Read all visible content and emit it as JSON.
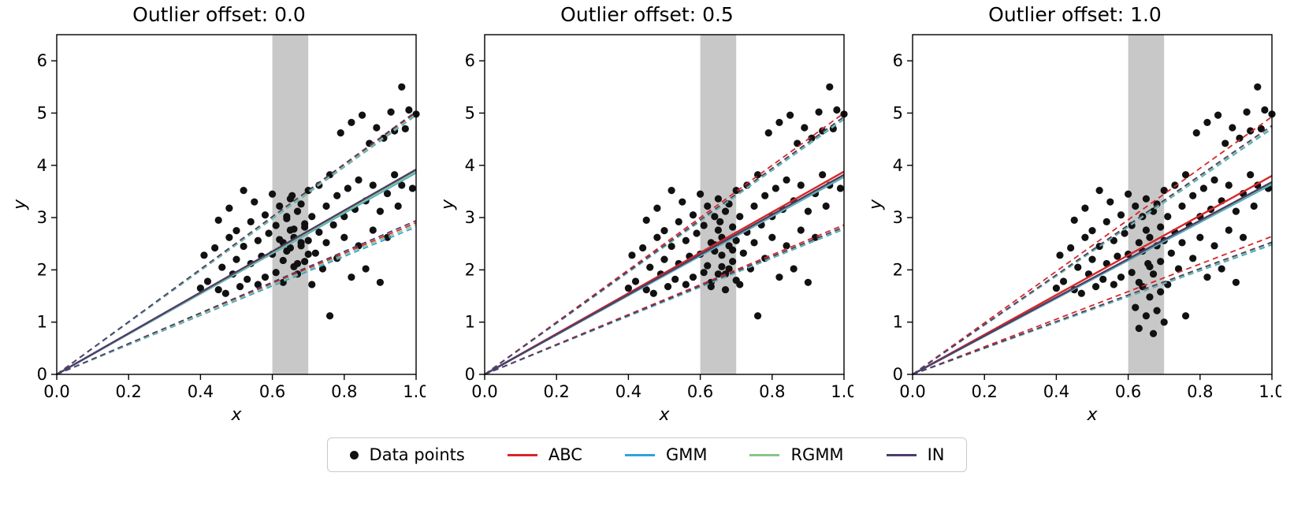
{
  "figure": {
    "legend": {
      "items": [
        {
          "label": "Data points",
          "type": "marker",
          "color": "#111111"
        },
        {
          "label": "ABC",
          "type": "line",
          "color": "#d62728"
        },
        {
          "label": "GMM",
          "type": "line",
          "color": "#31a2dc"
        },
        {
          "label": "RGMM",
          "type": "line",
          "color": "#88c488"
        },
        {
          "label": "IN",
          "type": "line",
          "color": "#4e3d6b"
        }
      ]
    }
  },
  "chart_data": {
    "type": "scatter",
    "description": "Three scatter panels with linear fits through origin (solid = mean, dashed = bounds) from four methods; gray band marks outlier region x in [0.6, 0.7].",
    "base_points": [
      [
        0.4,
        1.65
      ],
      [
        0.41,
        2.28
      ],
      [
        0.42,
        1.78
      ],
      [
        0.44,
        2.42
      ],
      [
        0.45,
        1.62
      ],
      [
        0.45,
        2.95
      ],
      [
        0.46,
        2.05
      ],
      [
        0.47,
        1.55
      ],
      [
        0.48,
        2.62
      ],
      [
        0.48,
        3.18
      ],
      [
        0.49,
        1.92
      ],
      [
        0.5,
        2.75
      ],
      [
        0.5,
        2.2
      ],
      [
        0.51,
        1.68
      ],
      [
        0.52,
        3.52
      ],
      [
        0.52,
        2.45
      ],
      [
        0.53,
        1.82
      ],
      [
        0.54,
        2.92
      ],
      [
        0.54,
        2.12
      ],
      [
        0.55,
        3.3
      ],
      [
        0.56,
        1.72
      ],
      [
        0.56,
        2.56
      ],
      [
        0.57,
        2.26
      ],
      [
        0.58,
        3.05
      ],
      [
        0.58,
        1.86
      ],
      [
        0.59,
        2.7
      ],
      [
        0.6,
        3.45
      ],
      [
        0.6,
        2.3
      ],
      [
        0.61,
        1.95
      ],
      [
        0.61,
        2.85
      ],
      [
        0.62,
        3.22
      ],
      [
        0.63,
        2.52
      ],
      [
        0.63,
        1.76
      ],
      [
        0.64,
        3.02
      ],
      [
        0.64,
        2.36
      ],
      [
        0.65,
        2.76
      ],
      [
        0.65,
        3.36
      ],
      [
        0.66,
        2.06
      ],
      [
        0.66,
        2.62
      ],
      [
        0.67,
        3.12
      ],
      [
        0.67,
        1.92
      ],
      [
        0.68,
        2.46
      ],
      [
        0.68,
        3.26
      ],
      [
        0.69,
        2.82
      ],
      [
        0.69,
        2.16
      ],
      [
        0.7,
        3.52
      ],
      [
        0.7,
        2.56
      ],
      [
        0.71,
        1.72
      ],
      [
        0.71,
        3.02
      ],
      [
        0.72,
        2.32
      ],
      [
        0.73,
        3.62
      ],
      [
        0.73,
        2.72
      ],
      [
        0.74,
        2.02
      ],
      [
        0.75,
        3.22
      ],
      [
        0.75,
        2.52
      ],
      [
        0.76,
        3.82
      ],
      [
        0.76,
        1.12
      ],
      [
        0.77,
        2.86
      ],
      [
        0.78,
        3.42
      ],
      [
        0.78,
        2.22
      ],
      [
        0.79,
        4.62
      ],
      [
        0.8,
        3.02
      ],
      [
        0.8,
        2.62
      ],
      [
        0.81,
        3.56
      ],
      [
        0.82,
        1.86
      ],
      [
        0.82,
        4.82
      ],
      [
        0.83,
        3.16
      ],
      [
        0.84,
        2.46
      ],
      [
        0.84,
        3.72
      ],
      [
        0.85,
        4.96
      ],
      [
        0.86,
        3.32
      ],
      [
        0.86,
        2.02
      ],
      [
        0.87,
        4.42
      ],
      [
        0.88,
        3.62
      ],
      [
        0.88,
        2.76
      ],
      [
        0.89,
        4.72
      ],
      [
        0.9,
        3.12
      ],
      [
        0.9,
        1.76
      ],
      [
        0.91,
        4.52
      ],
      [
        0.92,
        3.46
      ],
      [
        0.92,
        2.62
      ],
      [
        0.93,
        5.02
      ],
      [
        0.94,
        3.82
      ],
      [
        0.94,
        4.66
      ],
      [
        0.95,
        3.22
      ],
      [
        0.96,
        5.5
      ],
      [
        0.96,
        3.62
      ],
      [
        0.97,
        4.7
      ],
      [
        0.98,
        5.06
      ],
      [
        0.99,
        3.56
      ],
      [
        1.0,
        4.98
      ]
    ],
    "panels": [
      {
        "title": "Outlier offset: 0.0",
        "outlier_offset": 0.0,
        "xlabel": "x",
        "ylabel": "y",
        "xlim": [
          0,
          1.0
        ],
        "ylim": [
          0,
          6.5
        ],
        "xtick_values": [
          0,
          0.2,
          0.4,
          0.6,
          0.8,
          1.0
        ],
        "xtick_labels": [
          "0.0",
          "0.2",
          "0.4",
          "0.6",
          "0.8",
          "1.0"
        ],
        "ytick_values": [
          0,
          1,
          2,
          3,
          4,
          5,
          6
        ],
        "ytick_labels": [
          "0",
          "1",
          "2",
          "3",
          "4",
          "5",
          "6"
        ],
        "band": {
          "x0": 0.6,
          "x1": 0.7,
          "color": "#c8c8c8"
        },
        "outlier_points": [
          [
            0.62,
            2.58
          ],
          [
            0.63,
            2.18
          ],
          [
            0.64,
            2.98
          ],
          [
            0.65,
            2.42
          ],
          [
            0.655,
            3.42
          ],
          [
            0.66,
            2.78
          ],
          [
            0.67,
            2.12
          ],
          [
            0.68,
            2.52
          ],
          [
            0.69,
            2.88
          ],
          [
            0.7,
            2.3
          ]
        ],
        "lines": [
          {
            "name": "ABC",
            "color": "#d62728",
            "mean_slope": 3.9,
            "upper_slope": 5.0,
            "lower_slope": 2.9
          },
          {
            "name": "GMM",
            "color": "#31a2dc",
            "mean_slope": 3.86,
            "upper_slope": 4.96,
            "lower_slope": 2.82
          },
          {
            "name": "RGMM",
            "color": "#88c488",
            "mean_slope": 3.88,
            "upper_slope": 4.98,
            "lower_slope": 2.86
          },
          {
            "name": "IN",
            "color": "#4e3d6b",
            "mean_slope": 3.92,
            "upper_slope": 5.03,
            "lower_slope": 2.94
          }
        ]
      },
      {
        "title": "Outlier offset: 0.5",
        "outlier_offset": 0.5,
        "xlabel": "x",
        "ylabel": "y",
        "xlim": [
          0,
          1.0
        ],
        "ylim": [
          0,
          6.5
        ],
        "xtick_values": [
          0,
          0.2,
          0.4,
          0.6,
          0.8,
          1.0
        ],
        "xtick_labels": [
          "0.0",
          "0.2",
          "0.4",
          "0.6",
          "0.8",
          "1.0"
        ],
        "ytick_values": [
          0,
          1,
          2,
          3,
          4,
          5,
          6
        ],
        "ytick_labels": [
          "0",
          "1",
          "2",
          "3",
          "4",
          "5",
          "6"
        ],
        "band": {
          "x0": 0.6,
          "x1": 0.7,
          "color": "#c8c8c8"
        },
        "outlier_points": [
          [
            0.62,
            2.08
          ],
          [
            0.63,
            1.68
          ],
          [
            0.64,
            2.48
          ],
          [
            0.65,
            1.92
          ],
          [
            0.655,
            2.92
          ],
          [
            0.66,
            2.28
          ],
          [
            0.67,
            1.62
          ],
          [
            0.68,
            2.02
          ],
          [
            0.69,
            2.38
          ],
          [
            0.7,
            1.8
          ]
        ],
        "lines": [
          {
            "name": "ABC",
            "color": "#d62728",
            "mean_slope": 3.88,
            "upper_slope": 5.0,
            "lower_slope": 2.86
          },
          {
            "name": "GMM",
            "color": "#31a2dc",
            "mean_slope": 3.78,
            "upper_slope": 4.88,
            "lower_slope": 2.78
          },
          {
            "name": "RGMM",
            "color": "#88c488",
            "mean_slope": 3.8,
            "upper_slope": 4.9,
            "lower_slope": 2.8
          },
          {
            "name": "IN",
            "color": "#4e3d6b",
            "mean_slope": 3.82,
            "upper_slope": 4.93,
            "lower_slope": 2.82
          }
        ]
      },
      {
        "title": "Outlier offset: 1.0",
        "outlier_offset": 1.0,
        "xlabel": "x",
        "ylabel": "y",
        "xlim": [
          0,
          1.0
        ],
        "ylim": [
          0,
          6.5
        ],
        "xtick_values": [
          0,
          0.2,
          0.4,
          0.6,
          0.8,
          1.0
        ],
        "xtick_labels": [
          "0.0",
          "0.2",
          "0.4",
          "0.6",
          "0.8",
          "1.0"
        ],
        "ytick_values": [
          0,
          1,
          2,
          3,
          4,
          5,
          6
        ],
        "ytick_labels": [
          "0",
          "1",
          "2",
          "3",
          "4",
          "5",
          "6"
        ],
        "band": {
          "x0": 0.6,
          "x1": 0.7,
          "color": "#c8c8c8"
        },
        "outlier_points": [
          [
            0.62,
            1.28
          ],
          [
            0.63,
            0.88
          ],
          [
            0.64,
            1.68
          ],
          [
            0.65,
            1.12
          ],
          [
            0.655,
            2.12
          ],
          [
            0.66,
            1.48
          ],
          [
            0.67,
            0.78
          ],
          [
            0.68,
            1.22
          ],
          [
            0.69,
            1.58
          ],
          [
            0.7,
            1.0
          ]
        ],
        "lines": [
          {
            "name": "ABC",
            "color": "#d62728",
            "mean_slope": 3.8,
            "upper_slope": 4.93,
            "lower_slope": 2.64
          },
          {
            "name": "GMM",
            "color": "#31a2dc",
            "mean_slope": 3.64,
            "upper_slope": 4.7,
            "lower_slope": 2.48
          },
          {
            "name": "RGMM",
            "color": "#88c488",
            "mean_slope": 3.66,
            "upper_slope": 4.72,
            "lower_slope": 2.5
          },
          {
            "name": "IN",
            "color": "#4e3d6b",
            "mean_slope": 3.68,
            "upper_slope": 4.76,
            "lower_slope": 2.53
          }
        ]
      }
    ]
  }
}
